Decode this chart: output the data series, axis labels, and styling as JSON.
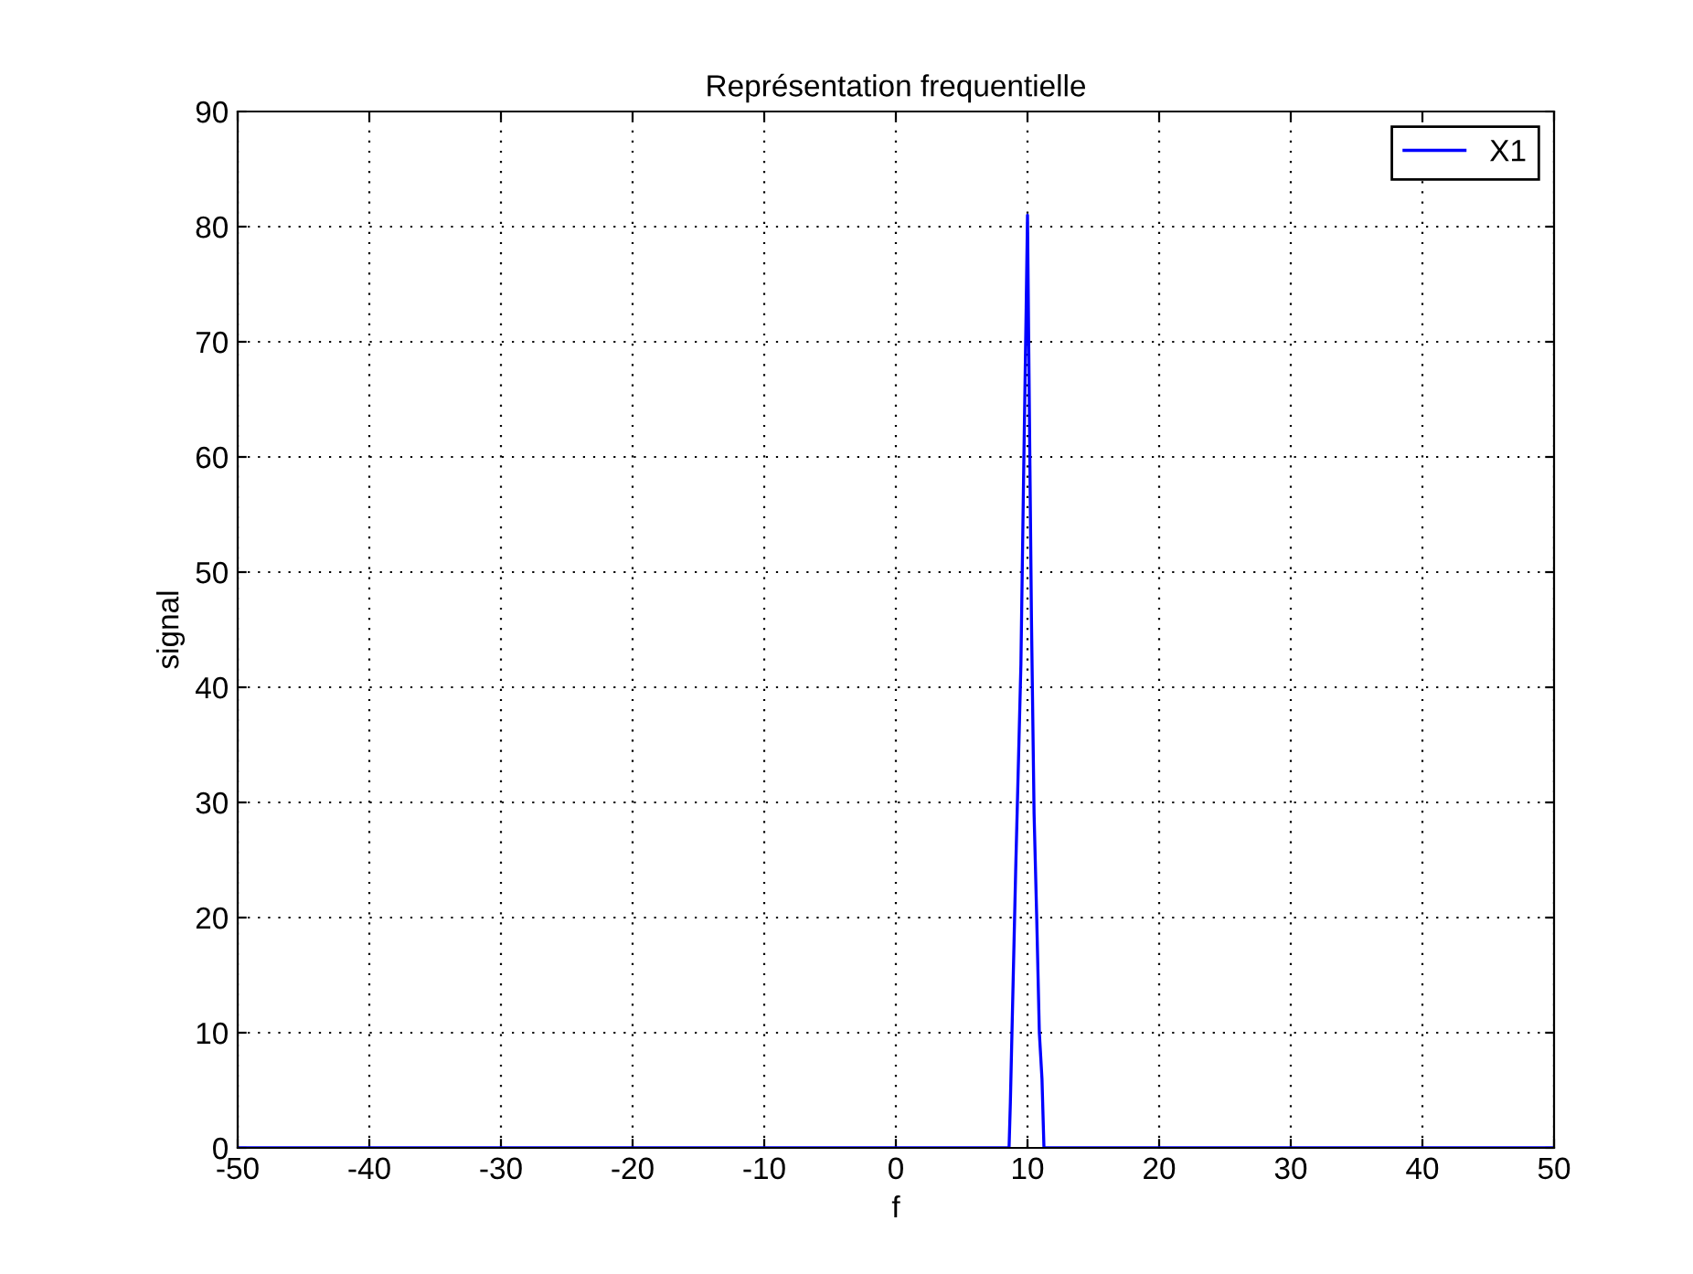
{
  "chart_data": {
    "type": "line",
    "title": "Représentation frequentielle",
    "xlabel": "f",
    "ylabel": "signal",
    "series": [
      {
        "name": "X1",
        "color": "#0000ff",
        "x": [
          -50,
          8.6,
          8.7,
          8.9,
          9.1,
          9.3,
          9.5,
          9.7,
          9.9,
          10.0,
          10.1,
          10.3,
          10.5,
          10.7,
          10.9,
          11.1,
          11.25,
          50
        ],
        "values": [
          0,
          0,
          4,
          14,
          24,
          33,
          42,
          58,
          73,
          81,
          69,
          46,
          29,
          20,
          10,
          6,
          0,
          0
        ]
      }
    ],
    "xlim": [
      -50,
      50
    ],
    "xticks": [
      -50,
      -40,
      -30,
      -20,
      -10,
      0,
      10,
      20,
      30,
      40,
      50
    ],
    "ylim": [
      0,
      90
    ],
    "yticks": [
      0,
      10,
      20,
      30,
      40,
      50,
      60,
      70,
      80,
      90
    ],
    "grid": true,
    "legend": "top right",
    "line_style": "solid",
    "marker": "none"
  }
}
